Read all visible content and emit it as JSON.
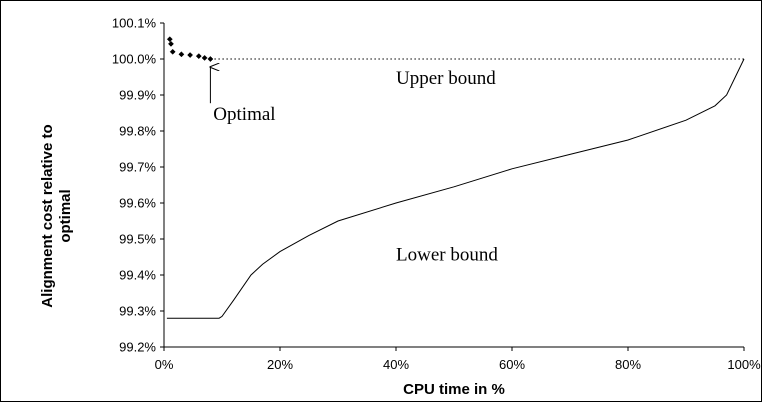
{
  "chart_data": {
    "type": "line",
    "title": "",
    "xlabel": "CPU time in %",
    "ylabel_lines": [
      "Alignment cost relative to",
      "optimal"
    ],
    "xlim": [
      0,
      100
    ],
    "ylim": [
      99.2,
      100.1
    ],
    "x_ticks": [
      "0%",
      "20%",
      "40%",
      "60%",
      "80%",
      "100%"
    ],
    "y_ticks": [
      "99.2%",
      "99.3%",
      "99.4%",
      "99.5%",
      "99.6%",
      "99.7%",
      "99.8%",
      "99.9%",
      "100.0%",
      "100.1%"
    ],
    "grid": false,
    "legend": "none",
    "series": [
      {
        "style": "solid",
        "color": "#000000",
        "x": [
          0.5,
          5,
          9.5,
          10,
          12,
          15,
          17,
          20,
          25,
          30,
          40,
          50,
          60,
          70,
          80,
          90,
          95,
          97,
          98.5,
          100
        ],
        "y": [
          99.28,
          99.28,
          99.28,
          99.285,
          99.33,
          99.4,
          99.43,
          99.465,
          99.51,
          99.55,
          99.6,
          99.645,
          99.695,
          99.735,
          99.775,
          99.83,
          99.87,
          99.9,
          99.95,
          100.0
        ]
      },
      {
        "style": "dotted",
        "color": "#000000",
        "x": [
          8,
          100
        ],
        "y": [
          100.0,
          100.0
        ]
      },
      {
        "style": "markers",
        "color": "#000000",
        "marker": "diamond",
        "x": [
          1,
          1.2,
          1.5,
          3,
          4.5,
          6,
          7,
          8
        ],
        "y": [
          100.055,
          100.042,
          100.02,
          100.013,
          100.011,
          100.008,
          100.003,
          100.0
        ]
      }
    ],
    "annotations": [
      {
        "text": "Upper bound",
        "x": 40,
        "y": 99.93
      },
      {
        "text": "Lower bound",
        "x": 40,
        "y": 99.44
      },
      {
        "text": "Optimal",
        "x": 8.5,
        "y": 99.83,
        "arrow_to": [
          8,
          100.0
        ]
      }
    ]
  }
}
